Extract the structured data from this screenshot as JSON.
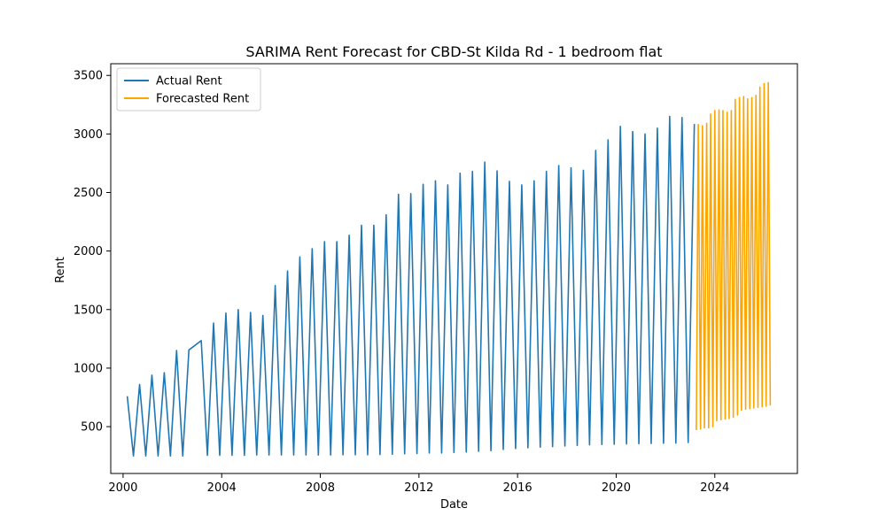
{
  "chart_data": {
    "type": "line",
    "title": "SARIMA Rent Forecast for CBD-St Kilda Rd - 1 bedroom flat",
    "xlabel": "Date",
    "ylabel": "Rent",
    "xlim": [
      1999.5,
      2027.35
    ],
    "ylim": [
      100,
      3600
    ],
    "xticks": [
      2000,
      2004,
      2008,
      2012,
      2016,
      2020,
      2024
    ],
    "yticks": [
      500,
      1000,
      1500,
      2000,
      2500,
      3000,
      3500
    ],
    "grid": false,
    "legend": "top-left",
    "series": [
      {
        "name": "Actual Rent",
        "color": "#1f77b4",
        "x": [
          2000.17,
          2000.42,
          2000.67,
          2000.92,
          2001.17,
          2001.42,
          2001.67,
          2001.92,
          2002.17,
          2002.42,
          2002.67,
          2003.17,
          2003.42,
          2003.67,
          2003.92,
          2004.17,
          2004.42,
          2004.67,
          2004.92,
          2005.17,
          2005.42,
          2005.67,
          2005.92,
          2006.17,
          2006.42,
          2006.67,
          2006.92,
          2007.17,
          2007.42,
          2007.67,
          2007.92,
          2008.17,
          2008.42,
          2008.67,
          2008.92,
          2009.17,
          2009.42,
          2009.67,
          2009.92,
          2010.17,
          2010.42,
          2010.67,
          2010.92,
          2011.17,
          2011.42,
          2011.67,
          2011.92,
          2012.17,
          2012.42,
          2012.67,
          2012.92,
          2013.17,
          2013.42,
          2013.67,
          2013.92,
          2014.17,
          2014.42,
          2014.67,
          2014.92,
          2015.17,
          2015.42,
          2015.67,
          2015.92,
          2016.17,
          2016.42,
          2016.67,
          2016.92,
          2017.17,
          2017.42,
          2017.67,
          2017.92,
          2018.17,
          2018.42,
          2018.67,
          2018.92,
          2019.17,
          2019.42,
          2019.67,
          2019.92,
          2020.17,
          2020.42,
          2020.67,
          2020.92,
          2021.17,
          2021.42,
          2021.67,
          2021.92,
          2022.17,
          2022.42,
          2022.67,
          2022.92,
          2023.17
        ],
        "values": [
          760,
          250,
          860,
          250,
          940,
          250,
          960,
          250,
          1150,
          250,
          1155,
          1235,
          255,
          1385,
          255,
          1470,
          255,
          1500,
          255,
          1475,
          258,
          1450,
          258,
          1705,
          258,
          1830,
          258,
          1950,
          258,
          2020,
          258,
          2080,
          258,
          2080,
          260,
          2135,
          260,
          2220,
          260,
          2220,
          262,
          2310,
          265,
          2485,
          268,
          2490,
          270,
          2570,
          275,
          2600,
          275,
          2565,
          280,
          2665,
          283,
          2680,
          290,
          2760,
          295,
          2685,
          305,
          2595,
          313,
          2565,
          320,
          2600,
          325,
          2680,
          330,
          2730,
          335,
          2710,
          340,
          2690,
          345,
          2860,
          348,
          2950,
          350,
          3065,
          352,
          3020,
          354,
          3000,
          356,
          3050,
          358,
          3150,
          360,
          3140,
          365,
          3085
        ]
      },
      {
        "name": "Forecasted Rent",
        "color": "#ffa500",
        "x": [
          2023.25,
          2023.33,
          2023.42,
          2023.5,
          2023.58,
          2023.67,
          2023.75,
          2023.83,
          2023.92,
          2024.0,
          2024.08,
          2024.17,
          2024.25,
          2024.33,
          2024.42,
          2024.5,
          2024.58,
          2024.67,
          2024.75,
          2024.83,
          2024.92,
          2025.0,
          2025.08,
          2025.17,
          2025.25,
          2025.33,
          2025.42,
          2025.5,
          2025.58,
          2025.67,
          2025.75,
          2025.83,
          2025.92,
          2026.0,
          2026.08,
          2026.17,
          2026.25
        ],
        "values": [
          470,
          3080,
          480,
          3070,
          490,
          3090,
          490,
          3170,
          500,
          3200,
          550,
          3205,
          560,
          3200,
          565,
          3185,
          570,
          3200,
          580,
          3295,
          600,
          3310,
          640,
          3320,
          650,
          3300,
          655,
          3310,
          660,
          3330,
          665,
          3400,
          670,
          3430,
          675,
          3440,
          680
        ]
      }
    ]
  }
}
